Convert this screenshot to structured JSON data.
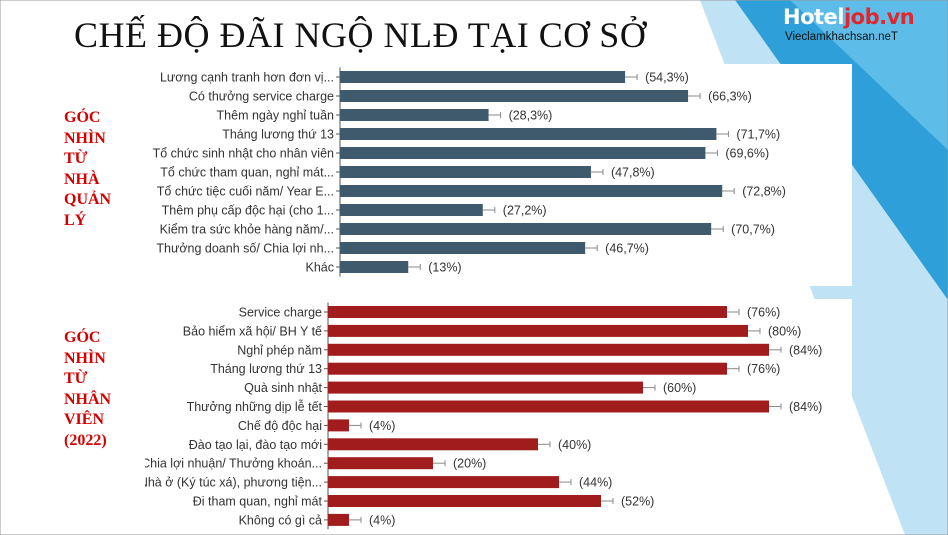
{
  "title": "CHẾ ĐỘ ĐÃI NGỘ NLĐ TẠI CƠ SỞ",
  "logo": {
    "brand_a": "Hotel",
    "brand_b": "job.vn",
    "sub": "Vieclamkhachsan.neT"
  },
  "side_labels": {
    "manager": [
      "GÓC",
      "NHÌN",
      "TỪ",
      "NHÀ",
      "QUẢN",
      "LÝ"
    ],
    "employee": [
      "GÓC",
      "NHÌN",
      "TỪ",
      "NHÂN",
      "VIÊN",
      "(2022)"
    ]
  },
  "colors": {
    "manager_bar": "#3f5a6d",
    "employee_bar": "#a11d1d",
    "accent_blue": "#4fb6e3",
    "side_label": "#d40000"
  },
  "chart_data": [
    {
      "type": "bar",
      "orientation": "horizontal",
      "categories": [
        "Lương cạnh tranh hơn đơn vị...",
        "Có thưởng service charge",
        "Thêm ngày nghỉ tuần",
        "Tháng lương thứ 13",
        "Tổ chức sinh nhật cho nhân viên",
        "Tổ chức tham quan, nghỉ mát...",
        "Tổ chức tiệc cuối năm/ Year E...",
        "Thêm phụ cấp độc hại (cho 1...",
        "Kiểm tra sức khỏe hàng năm/...",
        "Thưởng doanh số/ Chia lợi nh...",
        "Khác"
      ],
      "values": [
        54.3,
        66.3,
        28.3,
        71.7,
        69.6,
        47.8,
        72.8,
        27.2,
        70.7,
        46.7,
        13
      ],
      "value_labels": [
        "(54,3%)",
        "(66,3%)",
        "(28,3%)",
        "(71,7%)",
        "(69,6%)",
        "(47,8%)",
        "(72,8%)",
        "(27,2%)",
        "(70,7%)",
        "(46,7%)",
        "(13%)"
      ],
      "xlim": [
        0,
        100
      ],
      "error_bars": true
    },
    {
      "type": "bar",
      "orientation": "horizontal",
      "categories": [
        "Service charge",
        "Bảo hiểm xã hội/ BH Y tế",
        "Nghỉ phép năm",
        "Tháng lương thứ 13",
        "Quà sinh nhật",
        "Thưởng những dịp lễ tết",
        "Chế độ độc hại",
        "Đào tạo lại, đào tạo mới",
        "Chia lợi nhuận/ Thưởng khoán...",
        "Nhà ở (Ký túc xá), phương tiện...",
        "Đi tham quan, nghỉ mát",
        "Không có gì cả"
      ],
      "values": [
        76,
        80,
        84,
        76,
        60,
        84,
        4,
        40,
        20,
        44,
        52,
        4
      ],
      "value_labels": [
        "(76%)",
        "(80%)",
        "(84%)",
        "(76%)",
        "(60%)",
        "(84%)",
        "(4%)",
        "(40%)",
        "(20%)",
        "(44%)",
        "(52%)",
        "(4%)"
      ],
      "xlim": [
        0,
        100
      ],
      "error_bars": true
    }
  ]
}
